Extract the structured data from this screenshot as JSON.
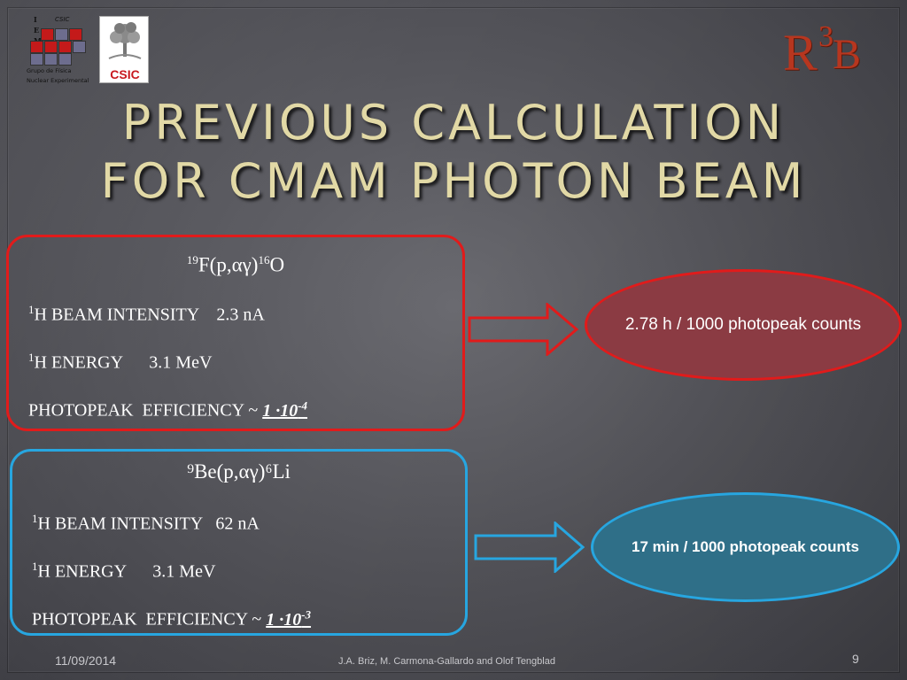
{
  "logos": {
    "group_letters": [
      "I",
      "E",
      "M"
    ],
    "group_csic": "CSIC",
    "group_caption_1": "Grupo de Física",
    "group_caption_2": "Nuclear Experimental",
    "csic_label": "CSIC",
    "r3b_r": "R",
    "r3b_3": "3",
    "r3b_b": "B"
  },
  "title": {
    "line1": "PREVIOUS CALCULATION",
    "line2": "FOR CMAM PHOTON BEAM"
  },
  "box1": {
    "reaction_pre": "19",
    "reaction_mid": "F(p,αγ)",
    "reaction_sup2": "16",
    "reaction_end": "O",
    "intensity_sup": "1",
    "intensity_label": "H BEAM INTENSITY    2.3 nA",
    "energy_sup": "1",
    "energy_label": "H ENERGY      3.1 MeV",
    "eff_label": "PHOTOPEAK  EFFICIENCY ~ ",
    "eff_mant": "1 ·10",
    "eff_exp": "-4"
  },
  "box2": {
    "reaction_pre": "⁹",
    "reaction_mid": "Be(p,αγ)",
    "reaction_sup2": "⁶",
    "reaction_end": "Li",
    "intensity_sup": "1",
    "intensity_label": "H BEAM INTENSITY   62 nA",
    "energy_sup": "1",
    "energy_label": "H ENERGY      3.1 MeV",
    "eff_label": "PHOTOPEAK  EFFICIENCY ~ ",
    "eff_mant": "1 ·10",
    "eff_exp": "-3"
  },
  "result1": "2.78 h / 1000 photopeak counts",
  "result2": "17 min / 1000 photopeak counts",
  "footer": {
    "date": "11/09/2014",
    "authors": "J.A. Briz, M. Carmona-Gallardo and Olof Tengblad",
    "page": "9"
  },
  "colors": {
    "title": "#e2d9a6",
    "red_border": "#e11b1b",
    "blue_border": "#27a6e0",
    "red_fill": "#8b3b43",
    "blue_fill": "#2f6f88"
  }
}
